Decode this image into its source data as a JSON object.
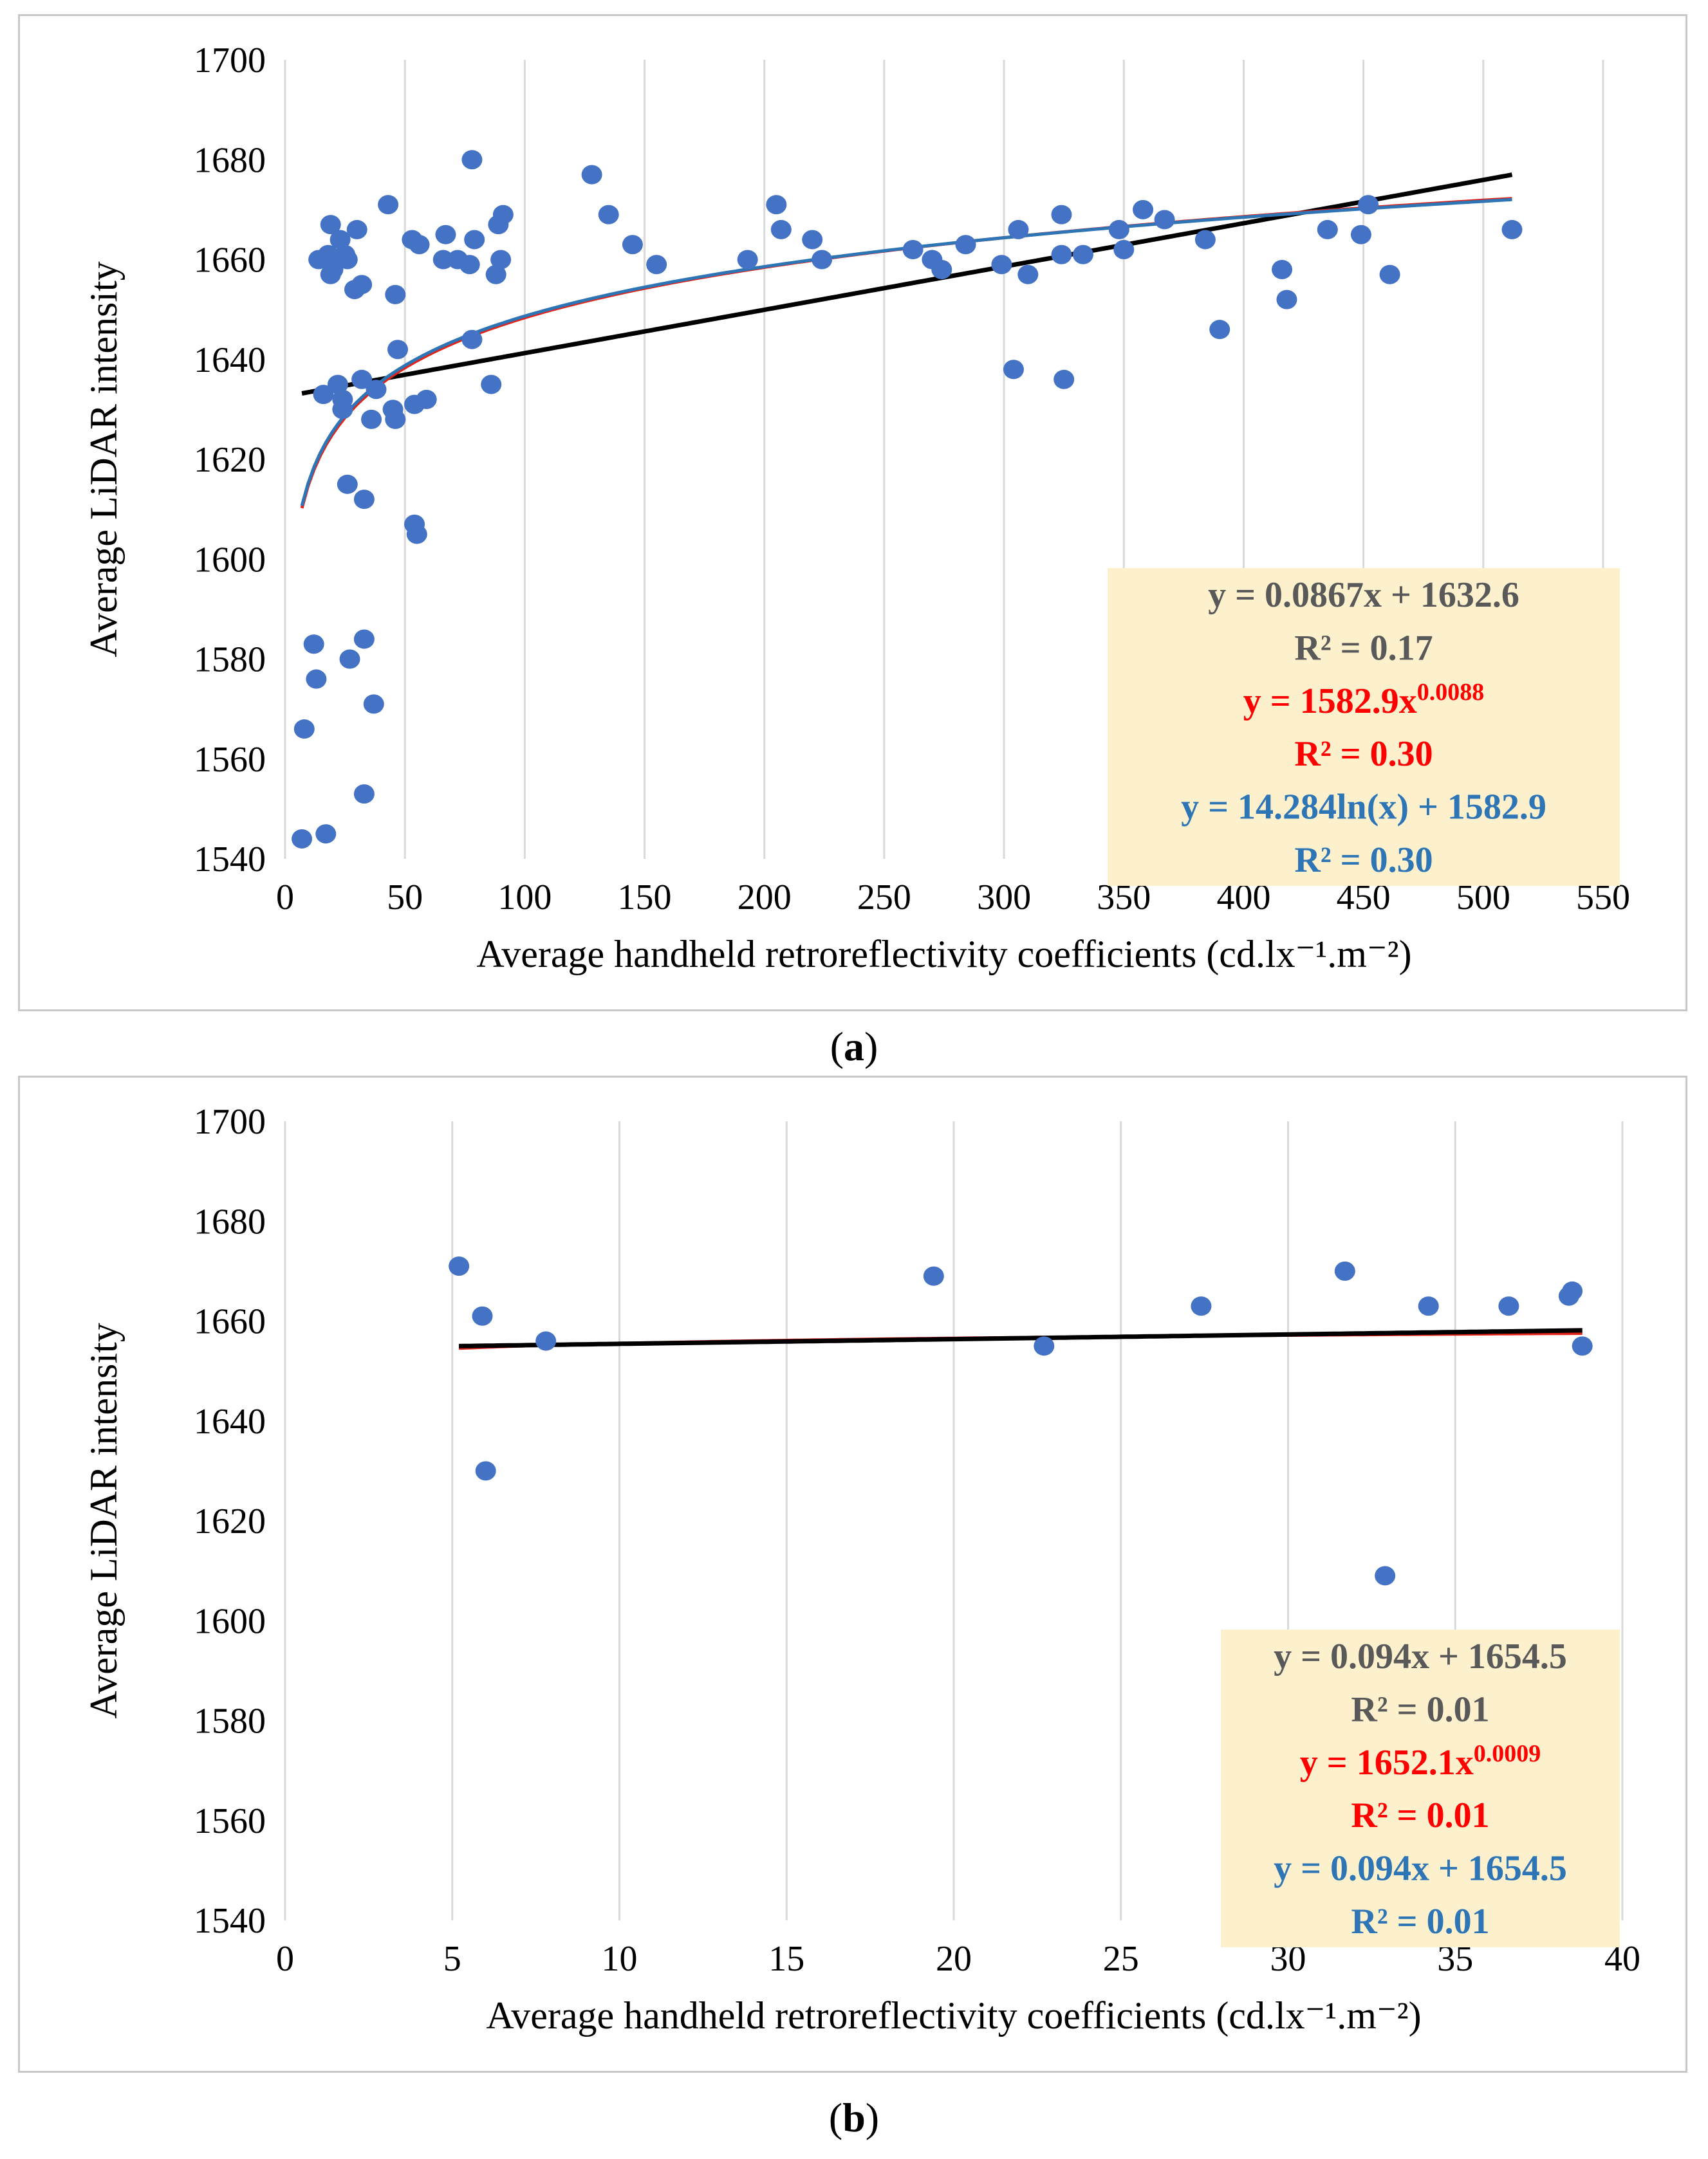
{
  "colors": {
    "points": "#4472c4",
    "linear": "#000000",
    "power": "#e2231a",
    "log": "#2e75b6",
    "grid": "#d9d9d9",
    "box": "#fdf0cd",
    "eq_gray": "#595959",
    "eq_red": "#ff0000",
    "eq_blue": "#2e75b6"
  },
  "captions": {
    "a": "a",
    "b": "b"
  },
  "chart_data": [
    {
      "id": "a",
      "type": "scatter",
      "xlabel": "Average  handheld retroreflectivity  coefficients (cd.lx⁻¹.m⁻²)",
      "ylabel": "Average LiDAR intensity",
      "xlim": [
        0,
        550
      ],
      "ylim": [
        1540,
        1700
      ],
      "xticks": [
        0,
        50,
        100,
        150,
        200,
        250,
        300,
        350,
        400,
        450,
        500,
        550
      ],
      "yticks": [
        1540,
        1560,
        1580,
        1600,
        1620,
        1640,
        1660,
        1680,
        1700
      ],
      "grid": "vertical",
      "points": [
        [
          7,
          1544
        ],
        [
          8,
          1566
        ],
        [
          12,
          1583
        ],
        [
          13,
          1576
        ],
        [
          14,
          1660
        ],
        [
          16,
          1633
        ],
        [
          17,
          1545
        ],
        [
          18,
          1661
        ],
        [
          19,
          1667
        ],
        [
          19,
          1657
        ],
        [
          20,
          1658
        ],
        [
          21,
          1660
        ],
        [
          22,
          1635
        ],
        [
          23,
          1664
        ],
        [
          24,
          1632
        ],
        [
          24,
          1630
        ],
        [
          25,
          1661
        ],
        [
          26,
          1660
        ],
        [
          26,
          1615
        ],
        [
          27,
          1580
        ],
        [
          29,
          1654
        ],
        [
          30,
          1666
        ],
        [
          32,
          1655
        ],
        [
          32,
          1636
        ],
        [
          33,
          1584
        ],
        [
          33,
          1553
        ],
        [
          33,
          1612
        ],
        [
          36,
          1628
        ],
        [
          37,
          1571
        ],
        [
          38,
          1634
        ],
        [
          43,
          1671
        ],
        [
          45,
          1630
        ],
        [
          46,
          1628
        ],
        [
          46,
          1653
        ],
        [
          47,
          1642
        ],
        [
          53,
          1664
        ],
        [
          54,
          1631
        ],
        [
          54,
          1607
        ],
        [
          55,
          1605
        ],
        [
          56,
          1663
        ],
        [
          59,
          1632
        ],
        [
          66,
          1660
        ],
        [
          67,
          1665
        ],
        [
          72,
          1660
        ],
        [
          77,
          1659
        ],
        [
          78,
          1680
        ],
        [
          78,
          1644
        ],
        [
          79,
          1664
        ],
        [
          86,
          1635
        ],
        [
          88,
          1657
        ],
        [
          89,
          1667
        ],
        [
          90,
          1660
        ],
        [
          91,
          1669
        ],
        [
          128,
          1677
        ],
        [
          135,
          1669
        ],
        [
          145,
          1663
        ],
        [
          155,
          1659
        ],
        [
          193,
          1660
        ],
        [
          205,
          1671
        ],
        [
          207,
          1666
        ],
        [
          220,
          1664
        ],
        [
          224,
          1660
        ],
        [
          262,
          1662
        ],
        [
          270,
          1660
        ],
        [
          274,
          1658
        ],
        [
          284,
          1663
        ],
        [
          299,
          1659
        ],
        [
          304,
          1638
        ],
        [
          306,
          1666
        ],
        [
          310,
          1657
        ],
        [
          324,
          1661
        ],
        [
          324,
          1669
        ],
        [
          325,
          1636
        ],
        [
          333,
          1661
        ],
        [
          348,
          1666
        ],
        [
          350,
          1662
        ],
        [
          358,
          1670
        ],
        [
          367,
          1668
        ],
        [
          384,
          1664
        ],
        [
          390,
          1646
        ],
        [
          416,
          1658
        ],
        [
          418,
          1652
        ],
        [
          435,
          1666
        ],
        [
          449,
          1665
        ],
        [
          452,
          1671
        ],
        [
          461,
          1657
        ],
        [
          512,
          1666
        ]
      ],
      "trendlines": [
        {
          "type": "linear",
          "slope": 0.0867,
          "intercept": 1632.6,
          "x_range": [
            7,
            512
          ]
        },
        {
          "type": "power",
          "a": 1582.9,
          "b": 0.0088,
          "x_range": [
            7,
            512
          ]
        },
        {
          "type": "logarithmic",
          "a": 14.284,
          "b": 1582.9,
          "x_range": [
            7,
            512
          ]
        }
      ],
      "legend_position": "bottom-right",
      "annotations": [
        {
          "text": "y = 0.0867x + 1632.6",
          "color": "#595959"
        },
        {
          "text": "R² = 0.17",
          "color": "#595959"
        },
        {
          "text": "y = 1582.9x",
          "sup": "0.0088",
          "color": "#ff0000"
        },
        {
          "text": "R² = 0.30",
          "color": "#ff0000"
        },
        {
          "text": "y = 14.284ln(x) + 1582.9",
          "color": "#2e75b6"
        },
        {
          "text": "R² = 0.30",
          "color": "#2e75b6"
        }
      ]
    },
    {
      "id": "b",
      "type": "scatter",
      "xlabel": "Average  handheld retroreflectivity  coefficients (cd.lx⁻¹.m⁻²)",
      "ylabel": "Average LiDAR intensity",
      "xlim": [
        0,
        40
      ],
      "ylim": [
        1540,
        1700
      ],
      "xticks": [
        0,
        5,
        10,
        15,
        20,
        25,
        30,
        35,
        40
      ],
      "yticks": [
        1540,
        1560,
        1580,
        1600,
        1620,
        1640,
        1660,
        1680,
        1700
      ],
      "grid": "vertical",
      "points": [
        [
          5.2,
          1671
        ],
        [
          5.9,
          1661
        ],
        [
          6.0,
          1630
        ],
        [
          7.8,
          1656
        ],
        [
          19.4,
          1669
        ],
        [
          22.7,
          1655
        ],
        [
          27.4,
          1663
        ],
        [
          31.7,
          1670
        ],
        [
          32.9,
          1609
        ],
        [
          34.2,
          1663
        ],
        [
          36.6,
          1663
        ],
        [
          38.4,
          1665
        ],
        [
          38.5,
          1666
        ],
        [
          38.8,
          1655
        ]
      ],
      "trendlines": [
        {
          "type": "power",
          "a": 1652.1,
          "b": 0.0009,
          "x_range": [
            5.2,
            38.8
          ]
        },
        {
          "type": "linear",
          "slope": 0.094,
          "intercept": 1654.5,
          "x_range": [
            5.2,
            38.8
          ]
        }
      ],
      "legend_position": "bottom-right",
      "annotations": [
        {
          "text": "y = 0.094x + 1654.5",
          "color": "#595959"
        },
        {
          "text": "R² = 0.01",
          "color": "#595959"
        },
        {
          "text": "y = 1652.1x",
          "sup": "0.0009",
          "color": "#ff0000"
        },
        {
          "text": "R² = 0.01",
          "color": "#ff0000"
        },
        {
          "text": "y = 0.094x + 1654.5",
          "color": "#2e75b6"
        },
        {
          "text": "R² = 0.01",
          "color": "#2e75b6"
        }
      ]
    }
  ]
}
